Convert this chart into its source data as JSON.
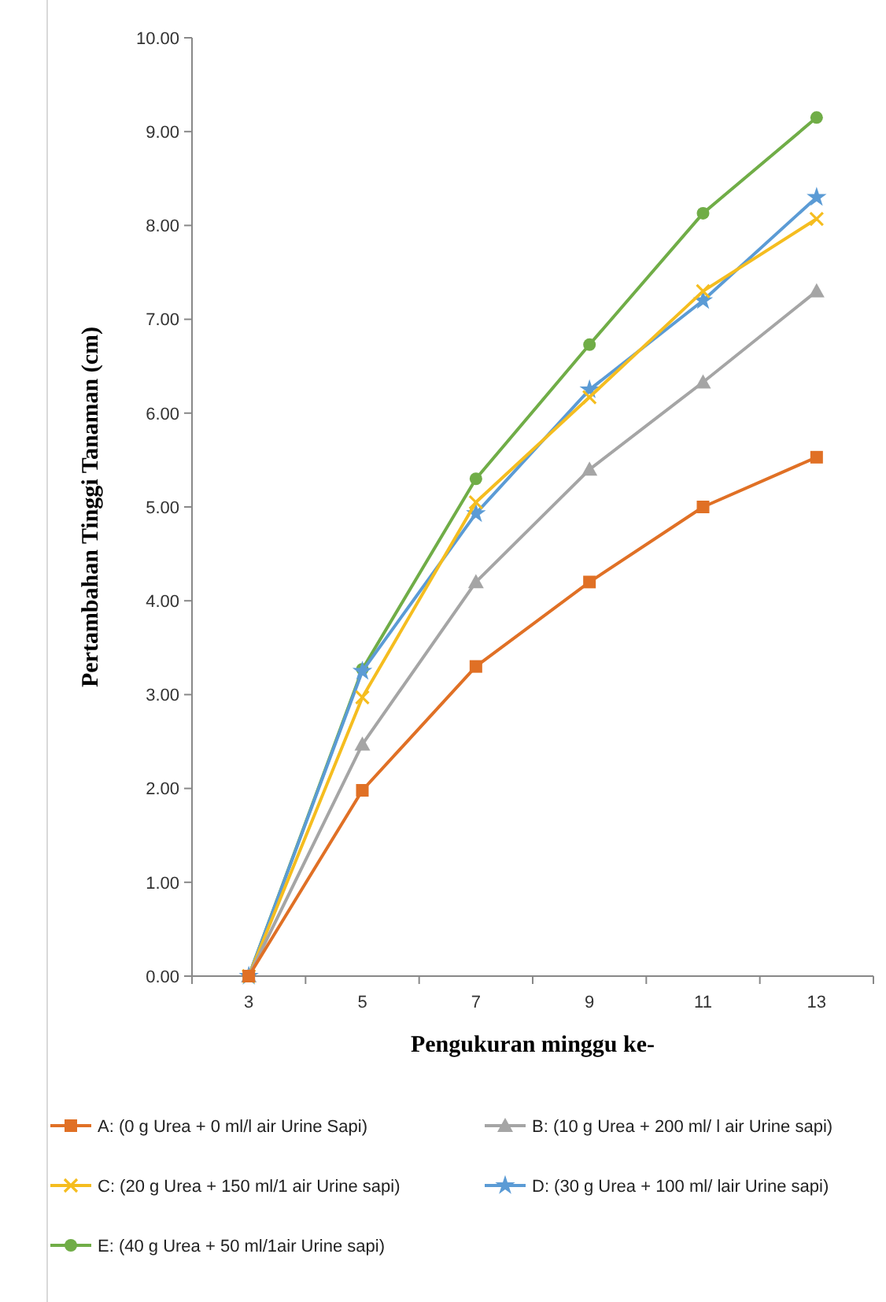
{
  "chart_data": {
    "type": "line",
    "xlabel": "Pengukuran minggu ke-",
    "ylabel": "Pertambahan Tinggi Tanaman (cm)",
    "categories": [
      "3",
      "5",
      "7",
      "9",
      "11",
      "13"
    ],
    "ylim": [
      0,
      10
    ],
    "yticks": [
      {
        "value": 0,
        "label": "0.00"
      },
      {
        "value": 1,
        "label": "1.00"
      },
      {
        "value": 2,
        "label": "2.00"
      },
      {
        "value": 3,
        "label": "3.00"
      },
      {
        "value": 4,
        "label": "4.00"
      },
      {
        "value": 5,
        "label": "5.00"
      },
      {
        "value": 6,
        "label": "6.00"
      },
      {
        "value": 7,
        "label": "7.00"
      },
      {
        "value": 8,
        "label": "8.00"
      },
      {
        "value": 9,
        "label": "9.00"
      },
      {
        "value": 10,
        "label": "10.00"
      }
    ],
    "grid": false,
    "legend": "bottom",
    "line_style": "solid",
    "series": [
      {
        "name": "A: (0 g Urea + 0 ml/l air Urine Sapi)",
        "color": "#e07025",
        "marker": "square",
        "values": [
          0,
          1.98,
          3.3,
          4.2,
          5.0,
          5.53
        ]
      },
      {
        "name": "B: (10 g Urea + 200 ml/ l air Urine sapi)",
        "color": "#a5a5a5",
        "marker": "triangle",
        "values": [
          0,
          2.47,
          4.2,
          5.4,
          6.33,
          7.3
        ]
      },
      {
        "name": "C: (20 g Urea + 150 ml/1 air Urine sapi)",
        "color": "#f5bd1f",
        "marker": "cross",
        "values": [
          0,
          2.97,
          5.05,
          6.17,
          7.3,
          8.07
        ]
      },
      {
        "name": "D: (30 g Urea + 100 ml/ lair Urine sapi)",
        "color": "#5b9bd5",
        "marker": "star",
        "values": [
          0,
          3.25,
          4.93,
          6.25,
          7.2,
          8.3
        ]
      },
      {
        "name": "E: (40 g Urea + 50 ml/1air Urine sapi)",
        "color": "#70ad47",
        "marker": "circle",
        "values": [
          0,
          3.27,
          5.3,
          6.73,
          8.13,
          9.15
        ]
      }
    ]
  }
}
